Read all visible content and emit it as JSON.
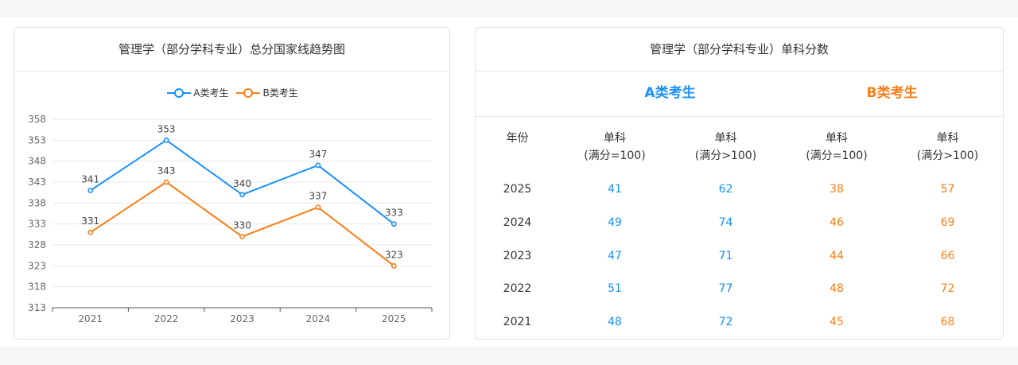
{
  "left_card": {
    "title": "管理学（部分学科专业）总分国家线趋势图"
  },
  "right_card": {
    "title": "管理学（部分学科专业）单科分数",
    "group_a": "A类考生",
    "group_b": "B类考生",
    "columns": {
      "year": "年份",
      "a1": [
        "单科",
        "(满分=100)"
      ],
      "a2": [
        "单科",
        "(满分>100)"
      ],
      "b1": [
        "单科",
        "(满分=100)"
      ],
      "b2": [
        "单科",
        "(满分>100)"
      ]
    },
    "rows": [
      {
        "year": "2025",
        "a1": "41",
        "a2": "62",
        "b1": "38",
        "b2": "57"
      },
      {
        "year": "2024",
        "a1": "49",
        "a2": "74",
        "b1": "46",
        "b2": "69"
      },
      {
        "year": "2023",
        "a1": "47",
        "a2": "71",
        "b1": "44",
        "b2": "66"
      },
      {
        "year": "2022",
        "a1": "51",
        "a2": "77",
        "b1": "48",
        "b2": "72"
      },
      {
        "year": "2021",
        "a1": "48",
        "a2": "72",
        "b1": "45",
        "b2": "68"
      }
    ]
  },
  "colors": {
    "series_a": "#1890ff",
    "series_b": "#fa7d15",
    "grid": "#e8e8e8",
    "axis": "#666666"
  },
  "chart_data": {
    "type": "line",
    "title": "管理学（部分学科专业）总分国家线趋势图",
    "categories": [
      "2021",
      "2022",
      "2023",
      "2024",
      "2025"
    ],
    "series": [
      {
        "name": "A类考生",
        "values": [
          341,
          353,
          340,
          347,
          333
        ]
      },
      {
        "name": "B类考生",
        "values": [
          331,
          343,
          330,
          337,
          323
        ]
      }
    ],
    "ylim": [
      313,
      358
    ],
    "yticks": [
      "313",
      "318",
      "323",
      "328",
      "333",
      "338",
      "343",
      "348",
      "353",
      "358"
    ],
    "grid": true,
    "legend": "top-center",
    "data_labels": true
  }
}
